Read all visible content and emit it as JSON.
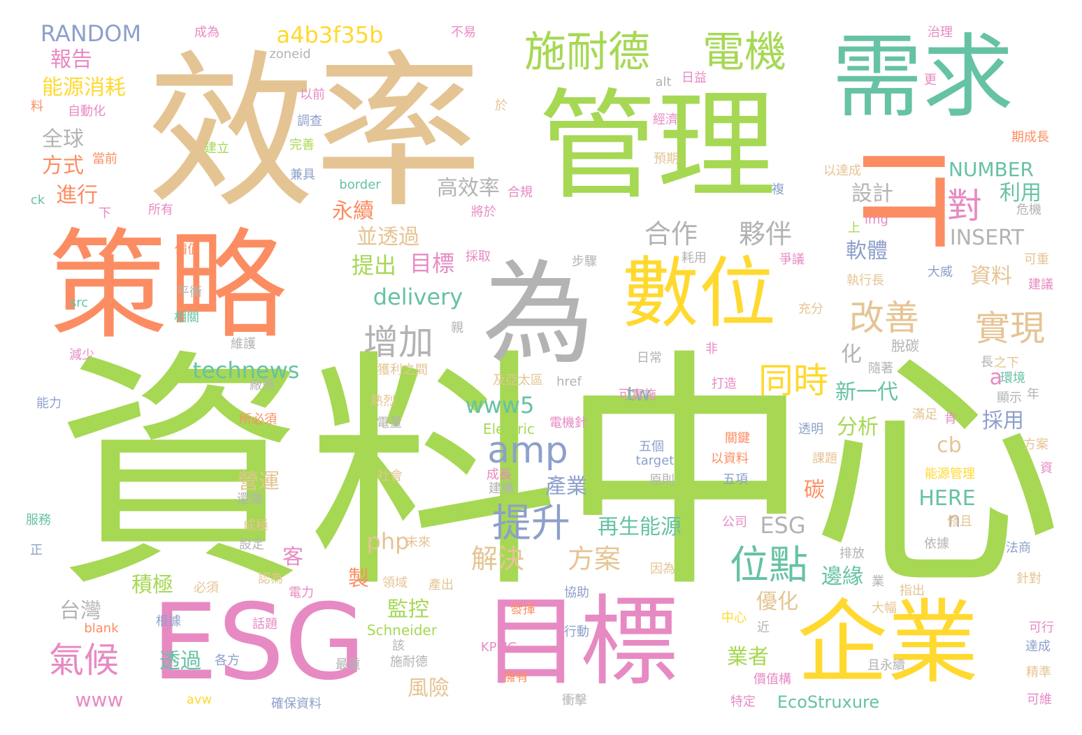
{
  "words": [
    {
      "text": "資料中心",
      "color": "lime"
    },
    {
      "text": "效率",
      "color": "tan"
    },
    {
      "text": "管理",
      "color": "lime"
    },
    {
      "text": "IT",
      "color": "orange"
    },
    {
      "text": "策略",
      "color": "orange"
    },
    {
      "text": "需求",
      "color": "teal"
    },
    {
      "text": "ESG",
      "color": "pink"
    },
    {
      "text": "目標",
      "color": "pink"
    },
    {
      "text": "企業",
      "color": "yellow"
    },
    {
      "text": "為",
      "color": "gray"
    },
    {
      "text": "數位",
      "color": "yellow"
    },
    {
      "text": "施耐德",
      "color": "lime"
    },
    {
      "text": "電機",
      "color": "lime"
    },
    {
      "text": "位點",
      "color": "teal"
    },
    {
      "text": "提升",
      "color": "slate"
    },
    {
      "text": "氣候",
      "color": "pink"
    },
    {
      "text": "amp",
      "color": "slate"
    },
    {
      "text": "增加",
      "color": "gray"
    },
    {
      "text": "改善",
      "color": "tan"
    },
    {
      "text": "實現",
      "color": "tan"
    },
    {
      "text": "同時",
      "color": "yellow"
    },
    {
      "text": "合作",
      "color": "gray"
    },
    {
      "text": "夥伴",
      "color": "gray"
    },
    {
      "text": "對",
      "color": "pink"
    },
    {
      "text": "a4b3f35b",
      "color": "yellow"
    },
    {
      "text": "RANDOM",
      "color": "slate"
    },
    {
      "text": "technews",
      "color": "teal"
    },
    {
      "text": "delivery",
      "color": "teal"
    },
    {
      "text": "解決",
      "color": "tan"
    },
    {
      "text": "方案",
      "color": "tan"
    },
    {
      "text": "提出",
      "color": "lime"
    },
    {
      "text": "目標",
      "color": "pink"
    },
    {
      "text": "www5",
      "color": "teal"
    },
    {
      "text": "NUMBER",
      "color": "teal"
    },
    {
      "text": "INSERT",
      "color": "gray"
    },
    {
      "text": "HERE",
      "color": "teal"
    },
    {
      "text": "www",
      "color": "pink"
    },
    {
      "text": "EcoStruxure",
      "color": "teal"
    },
    {
      "text": "Schneider",
      "color": "lime"
    },
    {
      "text": "Electric",
      "color": "lime"
    },
    {
      "text": "php",
      "color": "tan"
    },
    {
      "text": "ESG",
      "color": "gray"
    },
    {
      "text": "報告",
      "color": "pink"
    },
    {
      "text": "能源消耗",
      "color": "yellow"
    },
    {
      "text": "全球",
      "color": "gray"
    },
    {
      "text": "方式",
      "color": "orange"
    },
    {
      "text": "進行",
      "color": "orange"
    },
    {
      "text": "永續",
      "color": "orange"
    },
    {
      "text": "並透過",
      "color": "tan"
    },
    {
      "text": "高效率",
      "color": "gray"
    },
    {
      "text": "設計",
      "color": "gray"
    },
    {
      "text": "利用",
      "color": "teal"
    },
    {
      "text": "軟體",
      "color": "slate"
    },
    {
      "text": "資料",
      "color": "tan"
    },
    {
      "text": "新一代",
      "color": "teal"
    },
    {
      "text": "分析",
      "color": "lime"
    },
    {
      "text": "採用",
      "color": "slate"
    },
    {
      "text": "產業",
      "color": "slate"
    },
    {
      "text": "營運",
      "color": "tan"
    },
    {
      "text": "再生能源",
      "color": "teal"
    },
    {
      "text": "積極",
      "color": "lime"
    },
    {
      "text": "監控",
      "color": "lime"
    },
    {
      "text": "台灣",
      "color": "gray"
    },
    {
      "text": "透過",
      "color": "teal"
    },
    {
      "text": "風險",
      "color": "tan"
    },
    {
      "text": "業者",
      "color": "lime"
    },
    {
      "text": "優化",
      "color": "tan"
    },
    {
      "text": "邊緣",
      "color": "teal"
    },
    {
      "text": "碳",
      "color": "orange"
    },
    {
      "text": "脫碳",
      "color": "gray"
    },
    {
      "text": "化",
      "color": "gray"
    },
    {
      "text": "tw",
      "color": "teal"
    },
    {
      "text": "cb",
      "color": "tan"
    },
    {
      "text": "a",
      "color": "pink"
    },
    {
      "text": "n",
      "color": "gray"
    },
    {
      "text": "製",
      "color": "orange"
    },
    {
      "text": "客",
      "color": "pink"
    },
    {
      "text": "zoneid",
      "color": "gray"
    },
    {
      "text": "成為",
      "color": "pink"
    },
    {
      "text": "不易",
      "color": "pink"
    },
    {
      "text": "治理",
      "color": "pink"
    },
    {
      "text": "自動化",
      "color": "pink"
    },
    {
      "text": "以前",
      "color": "pink"
    },
    {
      "text": "調查",
      "color": "slate"
    },
    {
      "text": "alt",
      "color": "gray"
    },
    {
      "text": "日益",
      "color": "pink"
    },
    {
      "text": "更",
      "color": "pink"
    },
    {
      "text": "於",
      "color": "tan"
    },
    {
      "text": "經濟",
      "color": "pink"
    },
    {
      "text": "期成長",
      "color": "orange"
    },
    {
      "text": "當前",
      "color": "orange"
    },
    {
      "text": "建立",
      "color": "lime"
    },
    {
      "text": "完善",
      "color": "lime"
    },
    {
      "text": "預期",
      "color": "tan"
    },
    {
      "text": "以達成",
      "color": "tan"
    },
    {
      "text": "兼具",
      "color": "slate"
    },
    {
      "text": "border",
      "color": "teal"
    },
    {
      "text": "合規",
      "color": "pink"
    },
    {
      "text": "複",
      "color": "slate"
    },
    {
      "text": "ck",
      "color": "teal"
    },
    {
      "text": "下",
      "color": "pink"
    },
    {
      "text": "所有",
      "color": "pink"
    },
    {
      "text": "將於",
      "color": "pink"
    },
    {
      "text": "img",
      "color": "pink"
    },
    {
      "text": "危機",
      "color": "gray"
    },
    {
      "text": "上",
      "color": "lime"
    },
    {
      "text": "價值",
      "color": "orange"
    },
    {
      "text": "採取",
      "color": "pink"
    },
    {
      "text": "步驟",
      "color": "gray"
    },
    {
      "text": "耗用",
      "color": "gray"
    },
    {
      "text": "爭議",
      "color": "pink"
    },
    {
      "text": "可重",
      "color": "tan"
    },
    {
      "text": "大威",
      "color": "slate"
    },
    {
      "text": "平衡",
      "color": "gray"
    },
    {
      "text": "執行長",
      "color": "tan"
    },
    {
      "text": "建議",
      "color": "pink"
    },
    {
      "text": "src",
      "color": "teal"
    },
    {
      "text": "相關",
      "color": "teal"
    },
    {
      "text": "親",
      "color": "gray"
    },
    {
      "text": "充分",
      "color": "tan"
    },
    {
      "text": "減少",
      "color": "pink"
    },
    {
      "text": "維護",
      "color": "gray"
    },
    {
      "text": "非",
      "color": "pink"
    },
    {
      "text": "日常",
      "color": "gray"
    },
    {
      "text": "長",
      "color": "gray"
    },
    {
      "text": "隨著",
      "color": "gray"
    },
    {
      "text": "之下",
      "color": "tan"
    },
    {
      "text": "獲利之間",
      "color": "tan"
    },
    {
      "text": "及亞太區",
      "color": "tan"
    },
    {
      "text": "href",
      "color": "gray"
    },
    {
      "text": "環境",
      "color": "teal"
    },
    {
      "text": "廠商",
      "color": "gray"
    },
    {
      "text": "打造",
      "color": "pink"
    },
    {
      "text": "能力",
      "color": "slate"
    },
    {
      "text": "熱烈",
      "color": "tan"
    },
    {
      "text": "可實施",
      "color": "pink"
    },
    {
      "text": "顯示",
      "color": "gray"
    },
    {
      "text": "年",
      "color": "gray"
    },
    {
      "text": "所必須",
      "color": "orange"
    },
    {
      "text": "電量",
      "color": "gray"
    },
    {
      "text": "電機針",
      "color": "pink"
    },
    {
      "text": "透明",
      "color": "slate"
    },
    {
      "text": "滿足",
      "color": "tan"
    },
    {
      "text": "肯",
      "color": "pink"
    },
    {
      "text": "五個",
      "color": "slate"
    },
    {
      "text": "target",
      "color": "slate"
    },
    {
      "text": "關鍵",
      "color": "orange"
    },
    {
      "text": "方案",
      "color": "tan"
    },
    {
      "text": "以資料",
      "color": "orange"
    },
    {
      "text": "課題",
      "color": "tan"
    },
    {
      "text": "資",
      "color": "pink"
    },
    {
      "text": "社會",
      "color": "tan"
    },
    {
      "text": "成長",
      "color": "pink"
    },
    {
      "text": "建構",
      "color": "gray"
    },
    {
      "text": "原則",
      "color": "gray"
    },
    {
      "text": "五項",
      "color": "slate"
    },
    {
      "text": "能源管理",
      "color": "yellow"
    },
    {
      "text": "還端",
      "color": "gray"
    },
    {
      "text": "公司",
      "color": "pink"
    },
    {
      "text": "修且",
      "color": "tan"
    },
    {
      "text": "服務",
      "color": "teal"
    },
    {
      "text": "成極",
      "color": "tan"
    },
    {
      "text": "依據",
      "color": "gray"
    },
    {
      "text": "設定",
      "color": "gray"
    },
    {
      "text": "正",
      "color": "slate"
    },
    {
      "text": "未來",
      "color": "tan"
    },
    {
      "text": "因為",
      "color": "tan"
    },
    {
      "text": "排放",
      "color": "gray"
    },
    {
      "text": "法商",
      "color": "slate"
    },
    {
      "text": "認為",
      "color": "tan"
    },
    {
      "text": "領域",
      "color": "tan"
    },
    {
      "text": "產出",
      "color": "tan"
    },
    {
      "text": "業",
      "color": "gray"
    },
    {
      "text": "針對",
      "color": "tan"
    },
    {
      "text": "必須",
      "color": "tan"
    },
    {
      "text": "電力",
      "color": "pink"
    },
    {
      "text": "協助",
      "color": "slate"
    },
    {
      "text": "指出",
      "color": "tan"
    },
    {
      "text": "中心",
      "color": "yellow"
    },
    {
      "text": "大幅",
      "color": "tan"
    },
    {
      "text": "發揮",
      "color": "orange"
    },
    {
      "text": "近",
      "color": "gray"
    },
    {
      "text": "可行",
      "color": "pink"
    },
    {
      "text": "blank",
      "color": "orange"
    },
    {
      "text": "根據",
      "color": "slate"
    },
    {
      "text": "話題",
      "color": "pink"
    },
    {
      "text": "行動",
      "color": "slate"
    },
    {
      "text": "該",
      "color": "gray"
    },
    {
      "text": "達成",
      "color": "slate"
    },
    {
      "text": "KPMG",
      "color": "pink"
    },
    {
      "text": "各方",
      "color": "slate"
    },
    {
      "text": "最重",
      "color": "gray"
    },
    {
      "text": "施耐德",
      "color": "gray"
    },
    {
      "text": "擁有",
      "color": "orange"
    },
    {
      "text": "且永續",
      "color": "gray"
    },
    {
      "text": "價值構",
      "color": "pink"
    },
    {
      "text": "精準",
      "color": "tan"
    },
    {
      "text": "avw",
      "color": "yellow"
    },
    {
      "text": "確保資料",
      "color": "slate"
    },
    {
      "text": "衝擊",
      "color": "gray"
    },
    {
      "text": "特定",
      "color": "pink"
    },
    {
      "text": "可維",
      "color": "pink"
    },
    {
      "text": "料",
      "color": "orange"
    }
  ]
}
